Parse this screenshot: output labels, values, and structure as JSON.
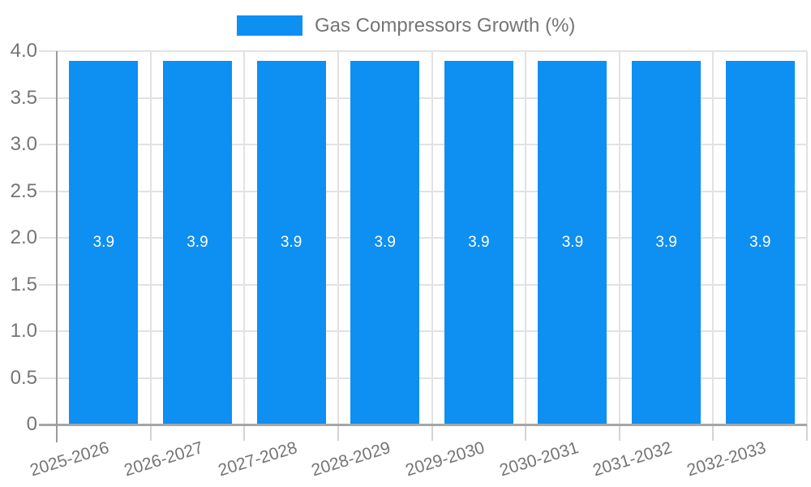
{
  "chart": {
    "legend": {
      "label": "Gas Compressors Growth (%)"
    },
    "colors": {
      "bar": "#0e8ff2",
      "grid": "#e2e2e2",
      "tick": "#d4d4d4",
      "axis": "#9a9a9a",
      "baseline": "#a6a6a6",
      "text": "#757575",
      "bar_label": "#ffffff",
      "background": "#ffffff"
    }
  },
  "chart_data": {
    "type": "bar",
    "title": "",
    "categories": [
      "2025-2026",
      "2026-2027",
      "2027-2028",
      "2028-2029",
      "2029-2030",
      "2030-2031",
      "2031-2032",
      "2032-2033"
    ],
    "series": [
      {
        "name": "Gas Compressors Growth (%)",
        "values": [
          3.9,
          3.9,
          3.9,
          3.9,
          3.9,
          3.9,
          3.9,
          3.9
        ]
      }
    ],
    "bar_value_labels": [
      "3.9",
      "3.9",
      "3.9",
      "3.9",
      "3.9",
      "3.9",
      "3.9",
      "3.9"
    ],
    "ylim": [
      0,
      4
    ],
    "y_tick_labels": [
      "0",
      "0.5",
      "1.0",
      "1.5",
      "2.0",
      "2.5",
      "3.0",
      "3.5",
      "4.0"
    ],
    "grid": true,
    "legend_position": "top-center",
    "ylabel": "",
    "xlabel": ""
  }
}
